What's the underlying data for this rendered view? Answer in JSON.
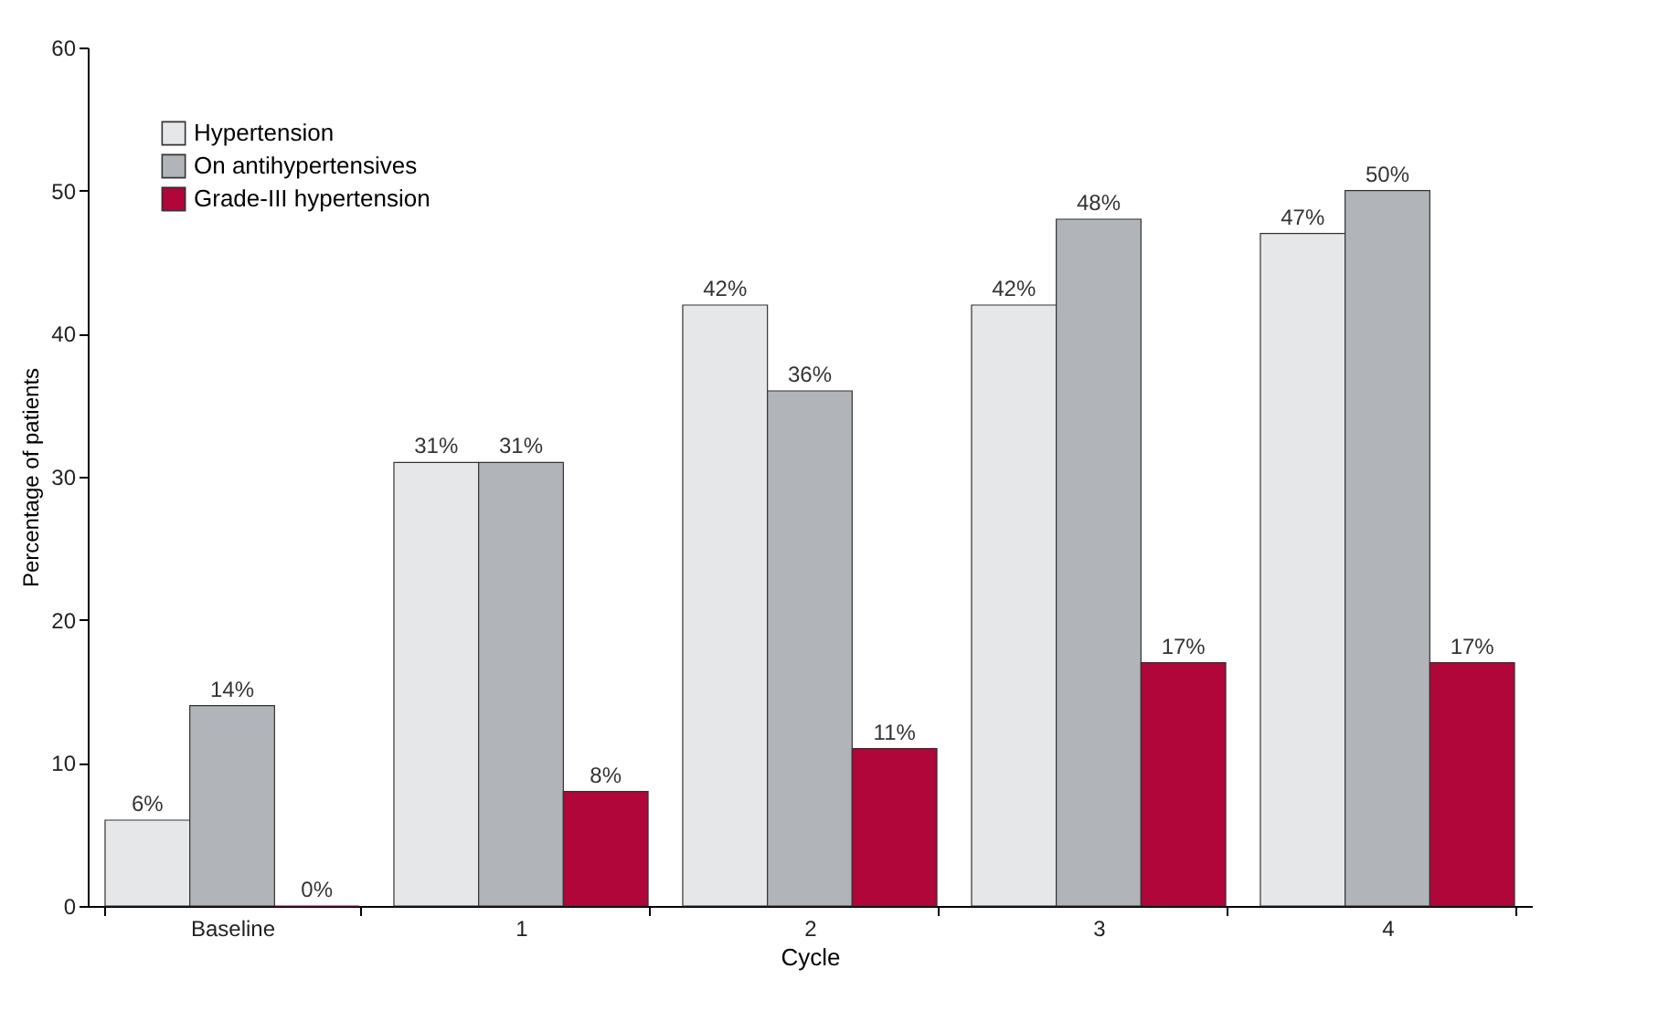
{
  "chart_data": {
    "type": "bar",
    "xlabel": "Cycle",
    "ylabel": "Percentage of patients",
    "categories": [
      "Baseline",
      "1",
      "2",
      "3",
      "4"
    ],
    "series": [
      {
        "name": "Hypertension",
        "color": "#e6e7e8",
        "values": [
          6,
          31,
          42,
          42,
          47
        ],
        "value_labels": [
          "6%",
          "31%",
          "42%",
          "42%",
          "47%"
        ]
      },
      {
        "name": "On antihypertensives",
        "color": "#b1b5b9",
        "values": [
          14,
          31,
          36,
          48,
          50
        ],
        "value_labels": [
          "14%",
          "31%",
          "36%",
          "48%",
          "50%"
        ]
      },
      {
        "name": "Grade-III hypertension",
        "color": "#b0063a",
        "values": [
          0,
          8,
          11,
          17,
          17
        ],
        "value_labels": [
          "0%",
          "8%",
          "11%",
          "17%",
          "17%"
        ]
      }
    ],
    "ylim": [
      0,
      60
    ],
    "yticks": [
      0,
      10,
      20,
      30,
      40,
      50,
      60
    ],
    "grid": false,
    "legend": "top left"
  }
}
